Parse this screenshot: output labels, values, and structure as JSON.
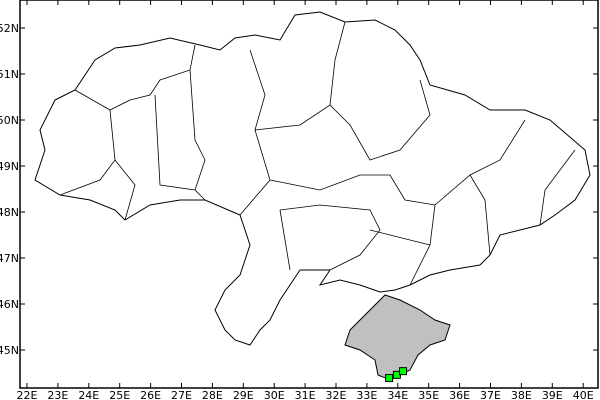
{
  "map": {
    "lon_labels": [
      "22E",
      "23E",
      "24E",
      "25E",
      "26E",
      "27E",
      "28E",
      "29E",
      "30E",
      "31E",
      "32E",
      "33E",
      "34E",
      "35E",
      "36E",
      "37E",
      "38E",
      "39E",
      "40E"
    ],
    "lat_labels": [
      "52N",
      "51N",
      "50N",
      "49N",
      "48N",
      "47N",
      "46N",
      "45N"
    ],
    "lon_range": [
      22,
      40
    ],
    "lat_range": [
      45,
      52
    ],
    "land_fill": "#ffffff",
    "highlight_region_fill": "#c0c0c0",
    "marker_color": "#00ff00",
    "markers": [
      {
        "lon": 33.72,
        "lat": 44.39
      },
      {
        "lon": 33.97,
        "lat": 44.46
      },
      {
        "lon": 34.17,
        "lat": 44.54
      }
    ]
  }
}
